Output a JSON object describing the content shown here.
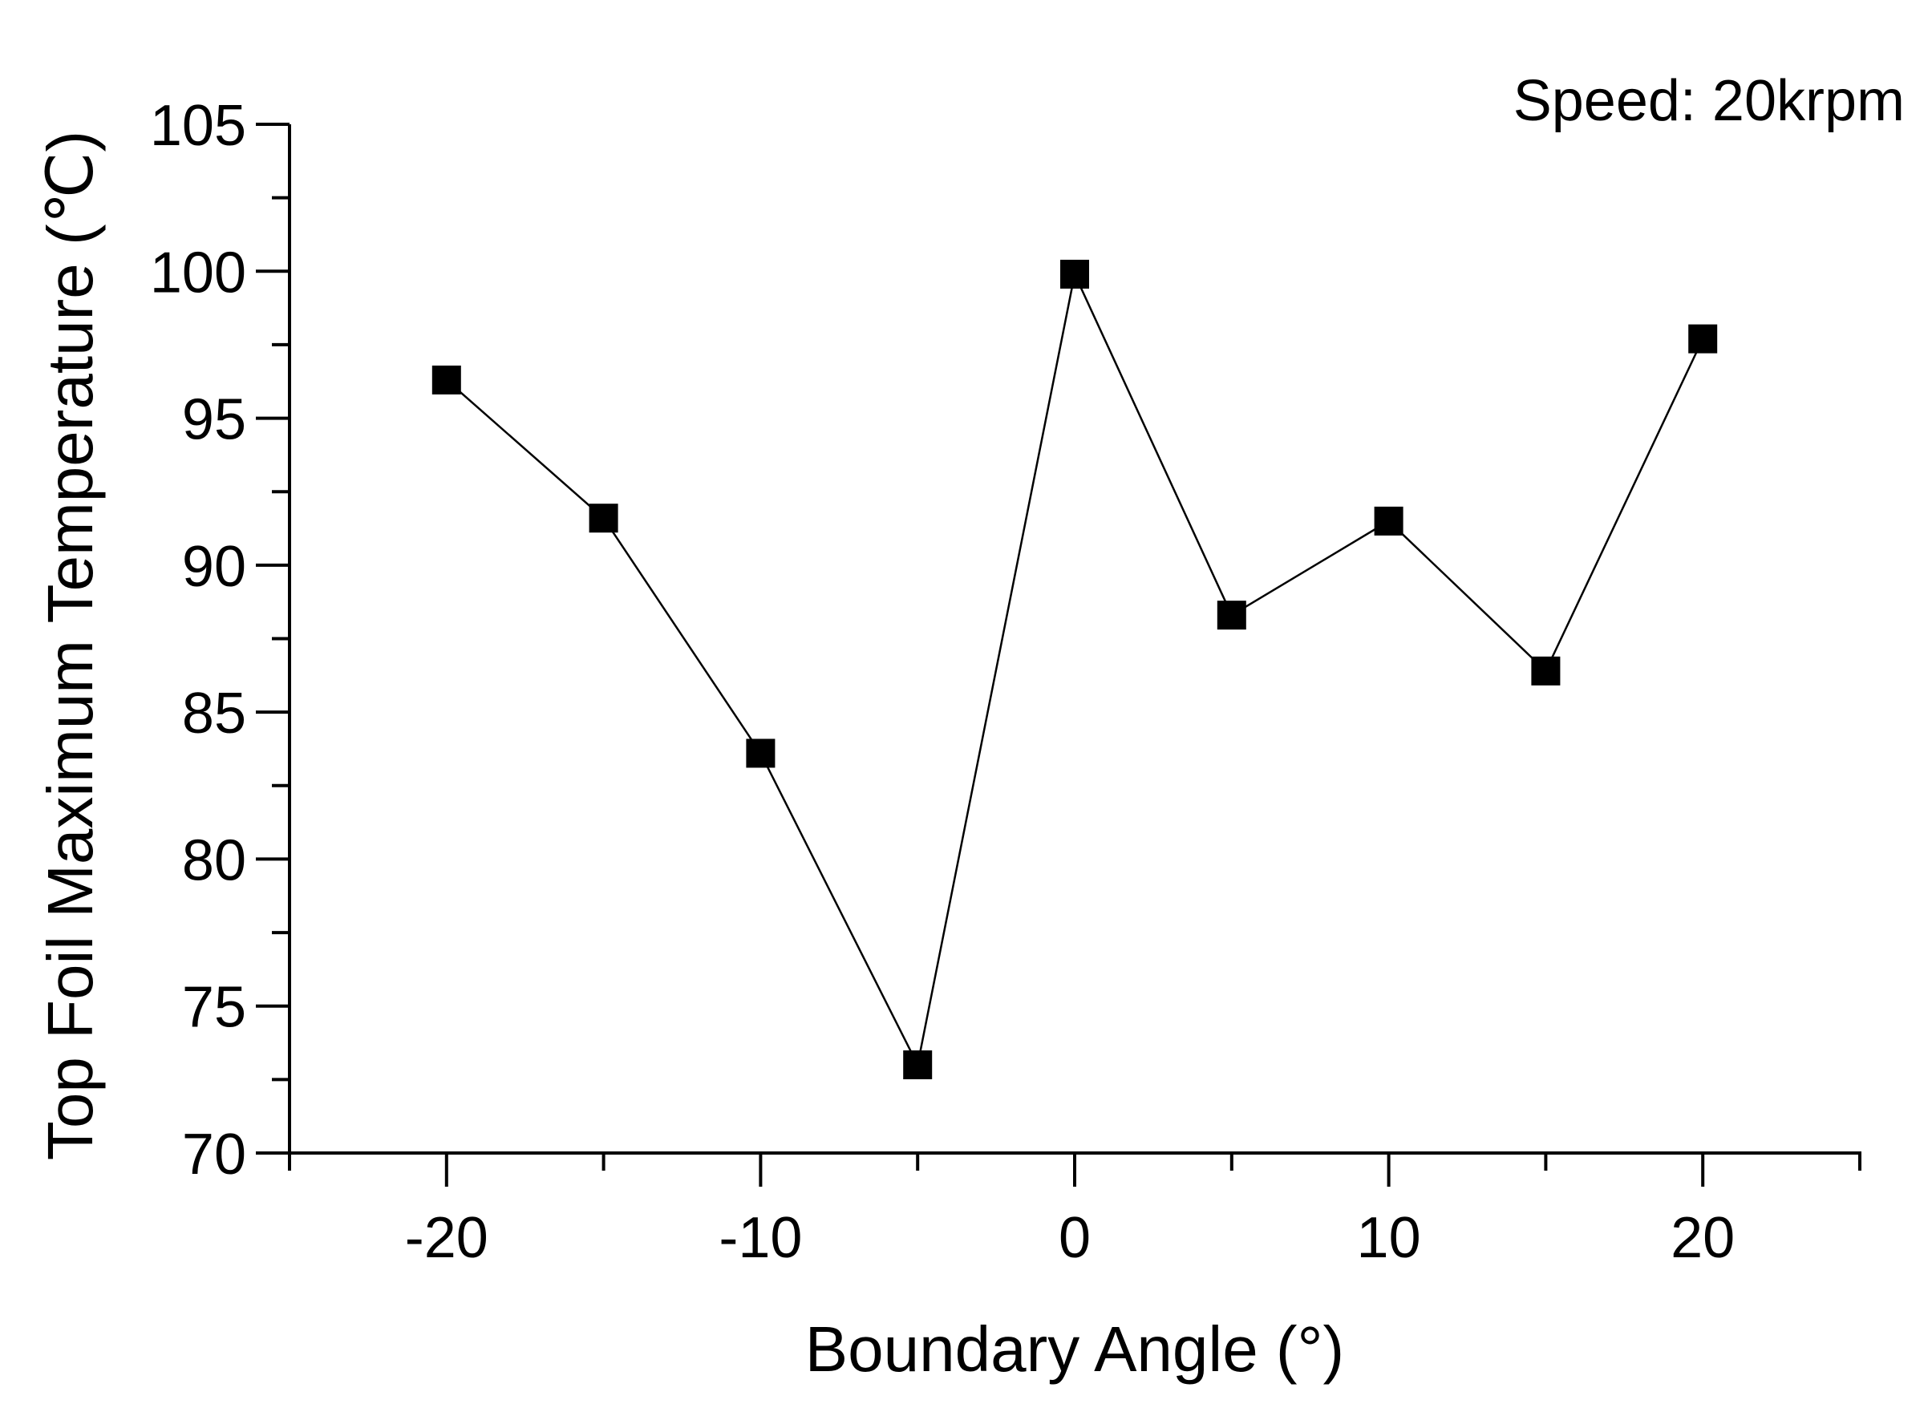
{
  "chart_data": {
    "type": "line",
    "title": "",
    "xlabel": "Boundary Angle (°)",
    "ylabel": "Top Foil Maximum Temperature (℃)",
    "annotation": "Speed: 20krpm",
    "xlim": [
      -25,
      25
    ],
    "ylim": [
      70,
      105
    ],
    "xticks": [
      -20,
      -10,
      0,
      10,
      20
    ],
    "xticks_minor": [
      -25,
      -15,
      -5,
      5,
      15,
      25
    ],
    "yticks": [
      70,
      75,
      80,
      85,
      90,
      95,
      100,
      105
    ],
    "yticks_minor": [
      72.5,
      77.5,
      82.5,
      87.5,
      92.5,
      97.5,
      102.5
    ],
    "grid": false,
    "marker": "square",
    "color": "#000000",
    "series": [
      {
        "name": "Top Foil Maximum Temperature",
        "x": [
          -20,
          -15,
          -10,
          -5,
          0,
          5,
          10,
          15,
          20
        ],
        "y": [
          96.3,
          91.6,
          83.6,
          73.0,
          99.9,
          88.3,
          91.5,
          86.4,
          97.7
        ]
      }
    ]
  }
}
